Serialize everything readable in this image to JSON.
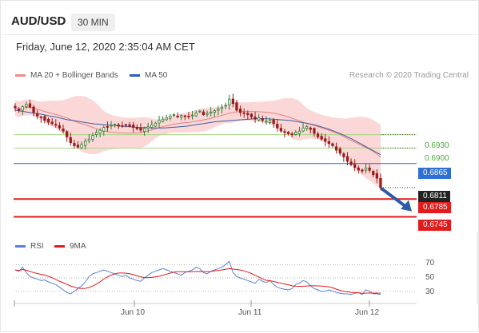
{
  "header": {
    "symbol": "AUD/USD",
    "timeframe": "30 MIN",
    "datetime": "Friday, June 12, 2020 2:35:04 AM CET"
  },
  "legend": {
    "bollinger": "MA 20 + Bollinger Bands",
    "ma50": "MA 50",
    "rsi": "RSI",
    "rsi_ma": "9MA"
  },
  "credit": "Research © 2020 Trading Central",
  "colors": {
    "candle_up": "#2e7d32",
    "candle_down": "#9b1c1c",
    "bollinger_fill": "#f9c9c9",
    "ma20": "#e46a6a",
    "ma50": "#3a5fa6",
    "level_green": "#a6d785",
    "level_blue": "#2d5cc8",
    "level_red": "#e31b1b",
    "rsi_line": "#5b7fd6",
    "rsi_ma_line": "#e31b1b",
    "arrow": "#2a5ca8"
  },
  "chart_data": {
    "type": "candlestick",
    "instrument": "AUD/USD",
    "interval": "30 MIN",
    "y_range": [
      0.671,
      0.703
    ],
    "x_labels": [
      "Jun 10",
      "Jun 11",
      "Jun 12"
    ],
    "last_price": 0.6811,
    "levels": [
      {
        "value": 0.693,
        "label": "0.6930",
        "style": "resistance-thin"
      },
      {
        "value": 0.69,
        "label": "0.6900",
        "style": "resistance-thin"
      },
      {
        "value": 0.6865,
        "label": "0.6865",
        "style": "pivot"
      },
      {
        "value": 0.6811,
        "label": "0.6811",
        "style": "last"
      },
      {
        "value": 0.6785,
        "label": "0.6785",
        "style": "support"
      },
      {
        "value": 0.6745,
        "label": "0.6745",
        "style": "support"
      }
    ],
    "close": [
      0.699,
      0.6985,
      0.6993,
      0.6998,
      0.6992,
      0.698,
      0.6972,
      0.6968,
      0.6962,
      0.6958,
      0.6955,
      0.6952,
      0.6945,
      0.6938,
      0.6925,
      0.6912,
      0.6905,
      0.6902,
      0.6908,
      0.6915,
      0.692,
      0.6928,
      0.6935,
      0.694,
      0.6946,
      0.6948,
      0.6951,
      0.6953,
      0.6949,
      0.695,
      0.6952,
      0.6949,
      0.6946,
      0.6943,
      0.694,
      0.6944,
      0.6948,
      0.6952,
      0.6956,
      0.6962,
      0.6965,
      0.6968,
      0.6972,
      0.6975,
      0.697,
      0.6973,
      0.6972,
      0.697,
      0.6974,
      0.6979,
      0.6983,
      0.6975,
      0.6978,
      0.6981,
      0.6984,
      0.6988,
      0.6992,
      0.6996,
      0.701,
      0.7,
      0.6985,
      0.698,
      0.6978,
      0.6975,
      0.697,
      0.6965,
      0.6968,
      0.6962,
      0.696,
      0.6962,
      0.6955,
      0.6945,
      0.6938,
      0.6935,
      0.6932,
      0.693,
      0.6935,
      0.6938,
      0.6945,
      0.6948,
      0.6942,
      0.6933,
      0.6925,
      0.692,
      0.6915,
      0.691,
      0.6905,
      0.6895,
      0.6888,
      0.688,
      0.687,
      0.6862,
      0.6856,
      0.685,
      0.6848,
      0.6855,
      0.685,
      0.684,
      0.6832,
      0.6811
    ],
    "ma50": [
      0.6985,
      0.6983,
      0.6981,
      0.6979,
      0.6977,
      0.6975,
      0.6972,
      0.697,
      0.6967,
      0.6964,
      0.6962,
      0.696,
      0.6958,
      0.6956,
      0.6954,
      0.6953,
      0.6952,
      0.6951,
      0.695,
      0.6949,
      0.6948,
      0.6947,
      0.6946,
      0.6946,
      0.6945,
      0.6945,
      0.6945,
      0.6946,
      0.6947,
      0.6948,
      0.6949,
      0.6951,
      0.6953,
      0.6955,
      0.6957,
      0.6959,
      0.696,
      0.6961,
      0.6962,
      0.6963,
      0.6964,
      0.6965,
      0.6966,
      0.6966,
      0.6966,
      0.6965,
      0.6964,
      0.6963,
      0.6962,
      0.696,
      0.6958,
      0.6956,
      0.6953,
      0.695,
      0.6946,
      0.6942,
      0.6937,
      0.6932,
      0.6926,
      0.692,
      0.6913,
      0.6906,
      0.6899,
      0.6892,
      0.6885
    ],
    "rsi": [
      62,
      60,
      66,
      58,
      52,
      50,
      48,
      46,
      47,
      44,
      42,
      40,
      36,
      32,
      28,
      26,
      30,
      34,
      38,
      44,
      52,
      56,
      58,
      60,
      62,
      60,
      58,
      56,
      54,
      52,
      54,
      50,
      48,
      46,
      45,
      50,
      54,
      58,
      60,
      62,
      64,
      62,
      60,
      58,
      56,
      54,
      58,
      60,
      62,
      66,
      64,
      58,
      56,
      60,
      62,
      64,
      66,
      70,
      75,
      58,
      52,
      50,
      48,
      46,
      44,
      42,
      48,
      45,
      43,
      46,
      40,
      36,
      34,
      33,
      32,
      34,
      40,
      42,
      46,
      44,
      38,
      34,
      32,
      30,
      30,
      32,
      30,
      28,
      27,
      26,
      26,
      25,
      27,
      28,
      25,
      32,
      30,
      26,
      26,
      25
    ],
    "rsi_ticks": [
      70,
      50,
      30
    ]
  }
}
